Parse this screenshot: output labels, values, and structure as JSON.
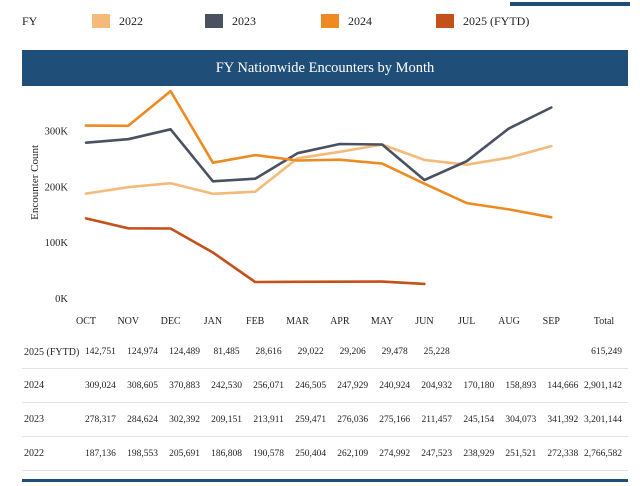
{
  "legend": {
    "heading": "FY",
    "items": [
      {
        "label": "2022",
        "color": "#f5b97a"
      },
      {
        "label": "2023",
        "color": "#4a5262"
      },
      {
        "label": "2024",
        "color": "#ee8a22"
      },
      {
        "label": "2025 (FYTD)",
        "color": "#c4501a"
      }
    ]
  },
  "banner_title": "FY Nationwide Encounters by Month",
  "chart_data": {
    "type": "line",
    "title": "FY Nationwide Encounters by Month",
    "ylabel": "Encounter Count",
    "xlabel": "",
    "ylim": [
      0,
      380000
    ],
    "yticks": [
      {
        "value": 0,
        "label": "0K"
      },
      {
        "value": 100000,
        "label": "100K"
      },
      {
        "value": 200000,
        "label": "200K"
      },
      {
        "value": 300000,
        "label": "300K"
      }
    ],
    "grid": false,
    "legend_position": "top",
    "categories": [
      "OCT",
      "NOV",
      "DEC",
      "JAN",
      "FEB",
      "MAR",
      "APR",
      "MAY",
      "JUN",
      "JUL",
      "AUG",
      "SEP"
    ],
    "series": [
      {
        "name": "2022",
        "color": "#f5b97a",
        "values": [
          187136,
          198553,
          205691,
          186808,
          190578,
          250404,
          262109,
          274992,
          247523,
          238929,
          251521,
          272338
        ]
      },
      {
        "name": "2023",
        "color": "#4a5262",
        "values": [
          278317,
          284624,
          302392,
          209151,
          213911,
          259471,
          276036,
          275166,
          211457,
          245154,
          304073,
          341392
        ]
      },
      {
        "name": "2024",
        "color": "#ee8a22",
        "values": [
          309024,
          308605,
          370883,
          242530,
          256071,
          246505,
          247929,
          240924,
          204932,
          170180,
          158893,
          144666
        ]
      },
      {
        "name": "2025 (FYTD)",
        "color": "#c4501a",
        "values": [
          142751,
          124974,
          124489,
          81485,
          28616,
          29022,
          29206,
          29478,
          25228,
          null,
          null,
          null
        ]
      }
    ]
  },
  "table": {
    "total_header": "Total",
    "rows": [
      {
        "label": "2025 (FYTD)",
        "cells": [
          "142,751",
          "124,974",
          "124,489",
          "81,485",
          "28,616",
          "29,022",
          "29,206",
          "29,478",
          "25,228",
          "",
          "",
          ""
        ],
        "total": "615,249"
      },
      {
        "label": "2024",
        "cells": [
          "309,024",
          "308,605",
          "370,883",
          "242,530",
          "256,071",
          "246,505",
          "247,929",
          "240,924",
          "204,932",
          "170,180",
          "158,893",
          "144,666"
        ],
        "total": "2,901,142"
      },
      {
        "label": "2023",
        "cells": [
          "278,317",
          "284,624",
          "302,392",
          "209,151",
          "213,911",
          "259,471",
          "276,036",
          "275,166",
          "211,457",
          "245,154",
          "304,073",
          "341,392"
        ],
        "total": "3,201,144"
      },
      {
        "label": "2022",
        "cells": [
          "187,136",
          "198,553",
          "205,691",
          "186,808",
          "190,578",
          "250,404",
          "262,109",
          "274,992",
          "247,523",
          "238,929",
          "251,521",
          "272,338"
        ],
        "total": "2,766,582"
      }
    ]
  }
}
